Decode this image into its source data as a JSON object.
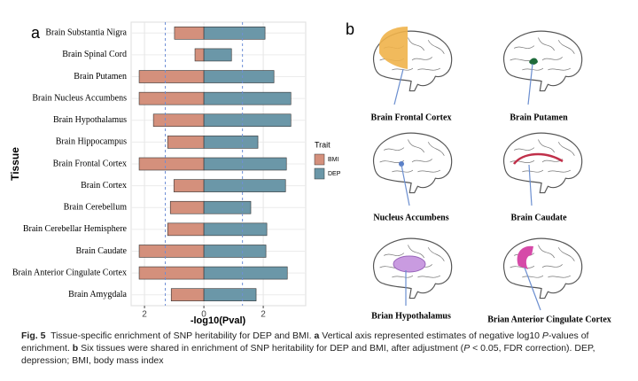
{
  "chart_data": {
    "type": "bar",
    "orientation": "horizontal",
    "y_label": "Tissue",
    "x_label": "-log10(Pval)",
    "legend_title": "Trait",
    "categories": [
      "Brain Substantia Nigra",
      "Brain Spinal Cord",
      "Brain Putamen",
      "Brain Nucleus Accumbens",
      "Brain Hypothalamus",
      "Brain Hippocampus",
      "Brain Frontal Cortex",
      "Brain Cortex",
      "Brain Cerebellum",
      "Brain Cerebellar Hemisphere",
      "Brain Caudate",
      "Brain Anterior Cingulate Cortex",
      "Brain Amygdala"
    ],
    "series": [
      {
        "name": "BMI",
        "color": "#d4907c",
        "values": [
          -0.99,
          -0.3,
          -2.18,
          -2.18,
          -1.7,
          -1.22,
          -2.18,
          -1.01,
          -1.13,
          -1.22,
          -2.18,
          -2.18,
          -1.1
        ]
      },
      {
        "name": "DEP",
        "color": "#6b97a8",
        "values": [
          2.06,
          0.93,
          2.36,
          2.93,
          2.93,
          1.82,
          2.78,
          2.75,
          1.58,
          2.12,
          2.09,
          2.81,
          1.76
        ]
      }
    ],
    "xlim": [
      -2.45,
      3.43
    ],
    "xticks": [
      {
        "value": -2,
        "label": "2"
      },
      0,
      2
    ],
    "reference_lines": [
      -1.3,
      1.3
    ],
    "grid": true
  },
  "panel_a": {
    "label": "a"
  },
  "panel_b": {
    "label": "b",
    "tissues": [
      "Brain Frontal Cortex",
      "Brain Putamen",
      "Nucleus Accumbens",
      "Brain Caudate",
      "Brian Hypothalamus",
      "Brian Anterior Cingulate Cortex"
    ]
  },
  "caption": {
    "label": "Fig. 5",
    "parts": [
      "Tissue-specific enrichment of SNP heritability for DEP and BMI. ",
      "a",
      " Vertical axis represented estimates of negative log10 ",
      "P",
      "-values of enrichment. ",
      "b",
      " Six tissues were shared in enrichment of SNP heritability for DEP and BMI, after adjustment (",
      "P",
      " < 0.05, FDR correction). DEP, depression; BMI, body mass index"
    ]
  }
}
